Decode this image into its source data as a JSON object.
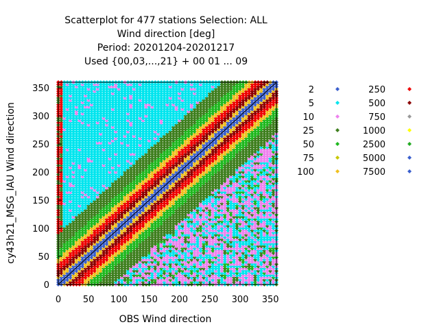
{
  "title_lines": [
    "Scatterplot for  477 stations Selection: ALL",
    "Wind direction [deg]",
    "Period: 20201204-20201217",
    "Used {00,03,...,21} + 00 01 ... 09"
  ],
  "chart_data": {
    "type": "scatter",
    "title": "Scatterplot for  477 stations Selection: ALL / Wind direction [deg] / Period: 20201204-20201217 / Used {00,03,...,21} + 00 01 ... 09",
    "xlabel": "OBS Wind direction",
    "ylabel": "cy43h21_MSG_IAU Wind direction",
    "xlim": [
      0,
      360
    ],
    "ylim": [
      0,
      360
    ],
    "xticks": [
      0,
      50,
      100,
      150,
      200,
      250,
      300,
      350
    ],
    "yticks": [
      0,
      50,
      100,
      150,
      200,
      250,
      300,
      350
    ],
    "grid": false,
    "reference_line": "y = x",
    "legend_position": "right",
    "legend": [
      {
        "label": "2",
        "color": "#3a5fcd"
      },
      {
        "label": "5",
        "color": "#00e5ee"
      },
      {
        "label": "10",
        "color": "#ee82ee"
      },
      {
        "label": "25",
        "color": "#3f7f1f"
      },
      {
        "label": "50",
        "color": "#1fb81f"
      },
      {
        "label": "75",
        "color": "#c8c800"
      },
      {
        "label": "100",
        "color": "#f0c020"
      },
      {
        "label": "250",
        "color": "#ee0000"
      },
      {
        "label": "500",
        "color": "#8b0000"
      },
      {
        "label": "750",
        "color": "#999999"
      },
      {
        "label": "1000",
        "color": "#ffff00"
      },
      {
        "label": "2500",
        "color": "#22aa22"
      },
      {
        "label": "5000",
        "color": "#3a5fcd"
      },
      {
        "label": "7500",
        "color": "#3a5fcd"
      }
    ],
    "density_by_offset": [
      {
        "max_abs_diff": 8,
        "color": "#3a5fcd"
      },
      {
        "max_abs_diff": 14,
        "color": "#f0c020"
      },
      {
        "max_abs_diff": 24,
        "color": "#8b0000"
      },
      {
        "max_abs_diff": 36,
        "color": "#ee0000"
      },
      {
        "max_abs_diff": 46,
        "color": "#f0c020"
      },
      {
        "max_abs_diff": 62,
        "color": "#1fb81f"
      },
      {
        "max_abs_diff": 90,
        "color": "#3f7f1f"
      }
    ],
    "background_colors": [
      "#ee82ee",
      "#00e5ee"
    ]
  },
  "axis_labels": {
    "x": "OBS Wind direction",
    "y": "cy43h21_MSG_IAU Wind direction"
  }
}
